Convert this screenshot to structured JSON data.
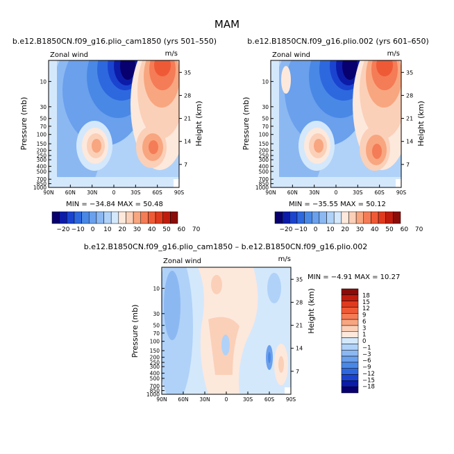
{
  "page": {
    "title": "MAM"
  },
  "colors": {
    "blues": [
      "#08006e",
      "#0c1ca8",
      "#1a44d0",
      "#2e68de",
      "#4a88e6",
      "#6aa0ec",
      "#8cb8f2",
      "#b0d2f8",
      "#d4e8fc"
    ],
    "reds": [
      "#fde8dc",
      "#fbd0b8",
      "#f8a680",
      "#f47c56",
      "#ef5a36",
      "#e03a1e",
      "#c01c0e",
      "#8a0c08"
    ]
  },
  "chart_data": [
    {
      "type": "heatmap",
      "id": "panel_a",
      "title": "b.e12.B1850CN.f09_g16.plio_cam1850 (yrs 501–550)",
      "left_label": "Zonal wind",
      "right_label": "m/s",
      "ylabel": "Pressure (mb)",
      "y2label": "Height (km)",
      "xticks": [
        "90N",
        "60N",
        "30N",
        "0",
        "30S",
        "60S",
        "90S"
      ],
      "yticks_pressure": [
        "10",
        "30",
        "50",
        "70",
        "100",
        "150",
        "200",
        "250",
        "300",
        "400",
        "500",
        "700",
        "850",
        "1000"
      ],
      "yticks_height": [
        "35",
        "28",
        "21",
        "14",
        "7"
      ],
      "stats": "MIN = −34.84   MAX =  50.48",
      "colorbar_labels": [
        "−20",
        "−10",
        "0",
        "10",
        "20",
        "30",
        "40",
        "50",
        "60",
        "70"
      ]
    },
    {
      "type": "heatmap",
      "id": "panel_b",
      "title": "b.e12.B1850CN.f09_g16.plio.002 (yrs 601–650)",
      "left_label": "Zonal wind",
      "right_label": "m/s",
      "ylabel": "Pressure (mb)",
      "y2label": "Height (km)",
      "xticks": [
        "90N",
        "60N",
        "30N",
        "0",
        "30S",
        "60S",
        "90S"
      ],
      "yticks_pressure": [
        "10",
        "30",
        "50",
        "70",
        "100",
        "150",
        "200",
        "250",
        "300",
        "400",
        "500",
        "700",
        "850",
        "1000"
      ],
      "yticks_height": [
        "35",
        "28",
        "21",
        "14",
        "7"
      ],
      "stats": "MIN = −35.55   MAX =  50.12",
      "colorbar_labels": [
        "−20",
        "−10",
        "0",
        "10",
        "20",
        "30",
        "40",
        "50",
        "60",
        "70"
      ]
    },
    {
      "type": "heatmap",
      "id": "panel_diff",
      "title": "b.e12.B1850CN.f09_g16.plio_cam1850 – b.e12.B1850CN.f09_g16.plio.002",
      "left_label": "Zonal wind",
      "right_label": "m/s",
      "ylabel": "Pressure (mb)",
      "y2label": "Height (km)",
      "xticks": [
        "90N",
        "60N",
        "30N",
        "0",
        "30S",
        "60S",
        "90S"
      ],
      "yticks_pressure": [
        "10",
        "30",
        "50",
        "70",
        "100",
        "150",
        "200",
        "250",
        "300",
        "400",
        "500",
        "700",
        "850",
        "1000"
      ],
      "yticks_height": [
        "35",
        "28",
        "21",
        "14",
        "7"
      ],
      "stats": "MIN =  −4.91   MAX =  10.27",
      "colorbar_labels": [
        "18",
        "15",
        "12",
        "9",
        "6",
        "3",
        "1",
        "0",
        "−1",
        "−3",
        "−6",
        "−9",
        "−12",
        "−15",
        "−18"
      ]
    }
  ]
}
